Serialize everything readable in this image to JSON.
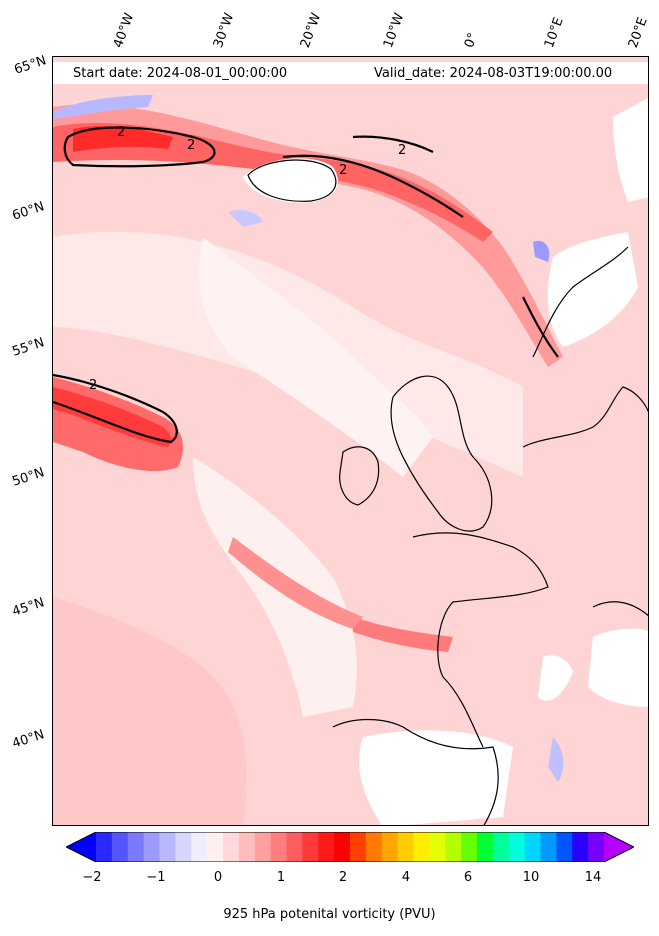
{
  "header": {
    "start_label": "Start date: 2024-08-01_00:00:00",
    "valid_label": "Valid_date: 2024-08-03T19:00:00.00"
  },
  "map": {
    "longitude_labels": [
      "40°W",
      "30°W",
      "20°W",
      "10°W",
      "0°",
      "10°E",
      "20°E"
    ],
    "latitude_labels": [
      "65°N",
      "60°N",
      "55°N",
      "50°N",
      "45°N",
      "40°N"
    ],
    "contour_label": "2"
  },
  "colorbar": {
    "title": "925 hPa potenital vorticity (PVU)",
    "tick_labels": [
      "−2",
      "−1",
      "0",
      "1",
      "2",
      "4",
      "6",
      "10",
      "14"
    ],
    "colors": [
      "#0000ff",
      "#2a2aff",
      "#5555ff",
      "#7a7aff",
      "#9a9aff",
      "#b8b8ff",
      "#d6d6ff",
      "#eeeeff",
      "#fff0f0",
      "#ffd9d9",
      "#ffbdbd",
      "#ff9f9f",
      "#ff7f7f",
      "#ff5e5e",
      "#ff3a3a",
      "#ff1a1a",
      "#ff0000",
      "#ff4000",
      "#ff7a00",
      "#ffa600",
      "#ffcc00",
      "#ffee00",
      "#e6ff00",
      "#b3ff00",
      "#66ff00",
      "#00ff33",
      "#00ff99",
      "#00ffdd",
      "#00d5ff",
      "#0099ff",
      "#0055ff",
      "#2a00ff",
      "#7700ff",
      "#b300ff"
    ]
  },
  "colors": {
    "land_masked": "#ffffff",
    "contour": "#000000",
    "coast": "#000000"
  }
}
